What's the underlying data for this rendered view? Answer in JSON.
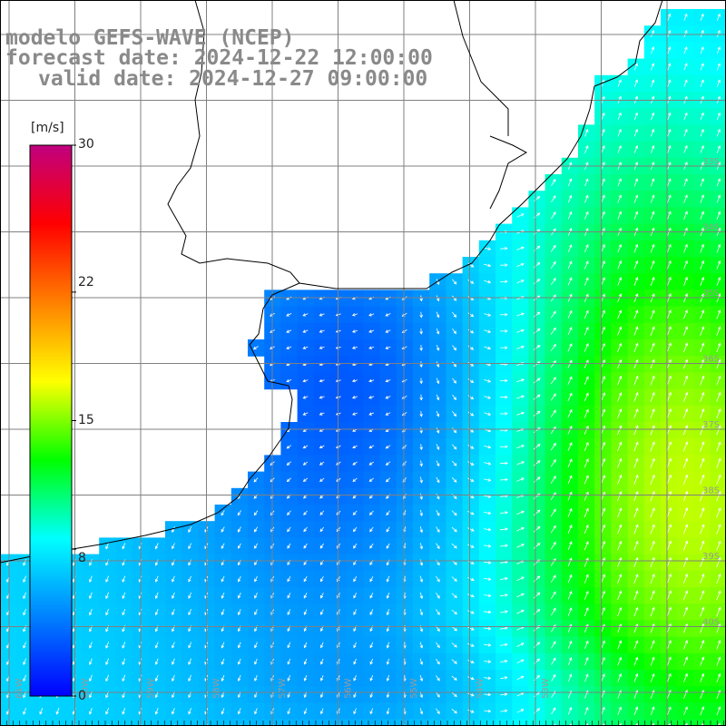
{
  "title": {
    "line1": "modelo GEFS-WAVE (NCEP)",
    "line2": "forecast date: 2024-12-22 12:00:00",
    "line3": "valid date: 2024-12-27 09:00:00"
  },
  "colorbar": {
    "unit": "[m/s]",
    "ticks": [
      {
        "value": 30,
        "label": "30"
      },
      {
        "value": 22,
        "label": "22"
      },
      {
        "value": 15,
        "label": "15"
      },
      {
        "value": 8,
        "label": "8"
      },
      {
        "value": 0,
        "label": "0"
      }
    ],
    "min": 0,
    "max": 30,
    "colors": [
      "#0000ff",
      "#0080ff",
      "#00ffff",
      "#00ff00",
      "#ffff00",
      "#ff8000",
      "#ff0000",
      "#c0007f"
    ]
  },
  "map": {
    "land_color": "#ffffff",
    "grid_color": "#808080",
    "coast_color": "#000000",
    "arrow_color": "#ffffff",
    "grid_labels": {
      "latitudes": [
        "33S",
        "34S",
        "35S",
        "36S",
        "37S",
        "38S",
        "39S",
        "40S"
      ],
      "longitudes": [
        "61W",
        "60W",
        "59W",
        "58W",
        "57W",
        "56W",
        "55W",
        "54W",
        "53W"
      ]
    }
  }
}
